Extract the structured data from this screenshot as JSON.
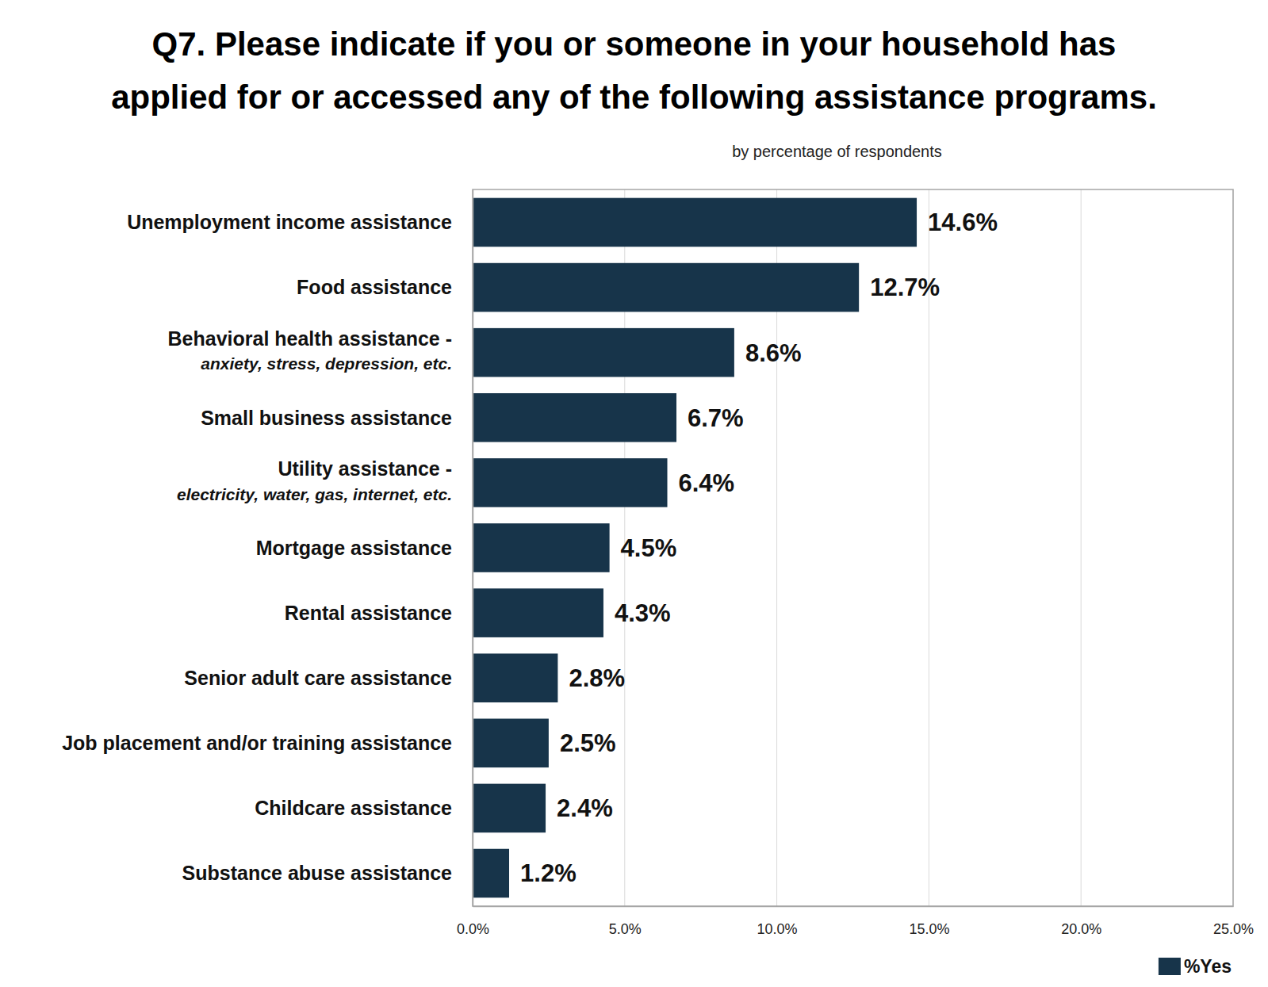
{
  "chart_data": {
    "type": "bar",
    "orientation": "horizontal",
    "title": "Q7. Please indicate if you or someone in your household has applied for or accessed any of the following assistance programs.",
    "subtitle": "by percentage of respondents",
    "categories": [
      "Unemployment income assistance",
      "Food assistance",
      "Behavioral health assistance - anxiety, stress, depression, etc.",
      "Small business assistance",
      "Utility assistance - electricity, water, gas, internet, etc.",
      "Mortgage assistance",
      "Rental assistance",
      "Senior adult care assistance",
      "Job placement and/or training assistance",
      "Childcare assistance",
      "Substance abuse assistance"
    ],
    "series": [
      {
        "name": "%Yes",
        "color": "#17344a",
        "values": [
          14.6,
          12.7,
          8.6,
          6.7,
          6.4,
          4.5,
          4.3,
          2.8,
          2.5,
          2.4,
          1.2
        ],
        "value_labels": [
          "14.6%",
          "12.7%",
          "8.6%",
          "6.7%",
          "6.4%",
          "4.5%",
          "4.3%",
          "2.8%",
          "2.5%",
          "2.4%",
          "1.2%"
        ]
      }
    ],
    "xlim": [
      0,
      25
    ],
    "xticks": [
      {
        "value": 0,
        "label": "0.0%"
      },
      {
        "value": 5,
        "label": "5.0%"
      },
      {
        "value": 10,
        "label": "10.0%"
      },
      {
        "value": 15,
        "label": "15.0%"
      },
      {
        "value": 20,
        "label": "20.0%"
      },
      {
        "value": 25,
        "label": "25.0%"
      }
    ],
    "grid": true,
    "data_labels": true,
    "legend": "bottom right"
  }
}
